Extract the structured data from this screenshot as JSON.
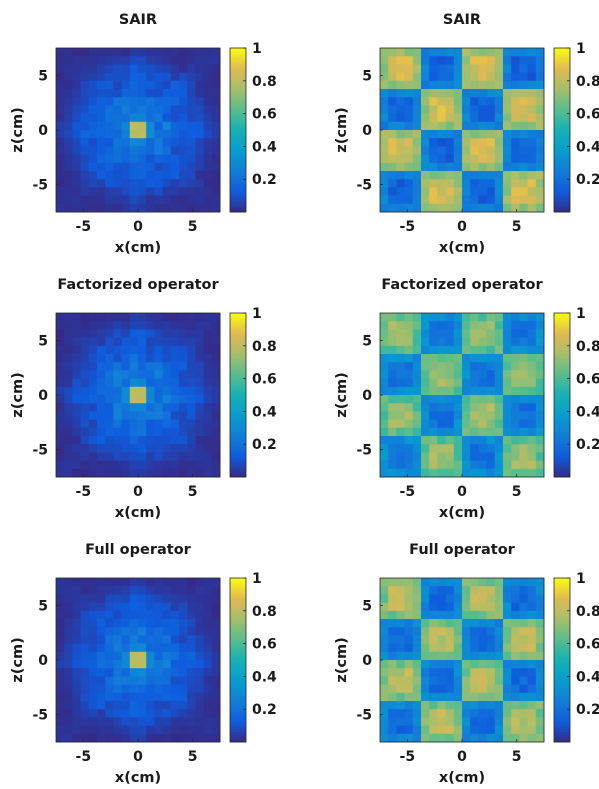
{
  "chart_data": [
    {
      "type": "heatmap",
      "title": "SAIR",
      "xlabel": "x(cm)",
      "ylabel": "z(cm)",
      "x_ticks": [
        -5,
        0,
        5
      ],
      "y_ticks": [
        5,
        0,
        -5
      ],
      "xlim": [
        -7.5,
        7.5
      ],
      "ylim": [
        -7.5,
        7.5
      ],
      "colorbar_ticks": [
        0.2,
        0.4,
        0.6,
        0.8,
        1
      ],
      "colorbar_range": [
        0,
        1
      ],
      "colormap": "parula",
      "pattern": "point-spread",
      "peak": {
        "x": 0,
        "z": 0,
        "value": 1
      }
    },
    {
      "type": "heatmap",
      "title": "SAIR",
      "xlabel": "x(cm)",
      "ylabel": "z(cm)",
      "x_ticks": [
        -5,
        0,
        5
      ],
      "y_ticks": [
        5,
        0,
        -5
      ],
      "xlim": [
        -7.5,
        7.5
      ],
      "ylim": [
        -7.5,
        7.5
      ],
      "colorbar_ticks": [
        0.2,
        0.4,
        0.6,
        0.8,
        1
      ],
      "colorbar_range": [
        0,
        1
      ],
      "colormap": "parula",
      "pattern": "checkerboard",
      "blocks": 4,
      "high_value": 0.9,
      "low_value": 0.1
    },
    {
      "type": "heatmap",
      "title": "Factorized operator",
      "xlabel": "x(cm)",
      "ylabel": "z(cm)",
      "x_ticks": [
        -5,
        0,
        5
      ],
      "y_ticks": [
        5,
        0,
        -5
      ],
      "xlim": [
        -7.5,
        7.5
      ],
      "ylim": [
        -7.5,
        7.5
      ],
      "colorbar_ticks": [
        0.2,
        0.4,
        0.6,
        0.8,
        1
      ],
      "colorbar_range": [
        0,
        1
      ],
      "colormap": "parula",
      "pattern": "point-spread",
      "peak": {
        "x": 0,
        "z": 0,
        "value": 1
      }
    },
    {
      "type": "heatmap",
      "title": "Factorized operator",
      "xlabel": "x(cm)",
      "ylabel": "z(cm)",
      "x_ticks": [
        -5,
        0,
        5
      ],
      "y_ticks": [
        5,
        0,
        -5
      ],
      "xlim": [
        -7.5,
        7.5
      ],
      "ylim": [
        -7.5,
        7.5
      ],
      "colorbar_ticks": [
        0.2,
        0.4,
        0.6,
        0.8,
        1
      ],
      "colorbar_range": [
        0,
        1
      ],
      "colormap": "parula",
      "pattern": "checkerboard",
      "blocks": 4,
      "high_value": 0.8,
      "low_value": 0.15
    },
    {
      "type": "heatmap",
      "title": "Full operator",
      "xlabel": "x(cm)",
      "ylabel": "z(cm)",
      "x_ticks": [
        -5,
        0,
        5
      ],
      "y_ticks": [
        5,
        0,
        -5
      ],
      "xlim": [
        -7.5,
        7.5
      ],
      "ylim": [
        -7.5,
        7.5
      ],
      "colorbar_ticks": [
        0.2,
        0.4,
        0.6,
        0.8,
        1
      ],
      "colorbar_range": [
        0,
        1
      ],
      "colormap": "parula",
      "pattern": "point-spread",
      "peak": {
        "x": 0,
        "z": 0,
        "value": 1
      }
    },
    {
      "type": "heatmap",
      "title": "Full operator",
      "xlabel": "x(cm)",
      "ylabel": "z(cm)",
      "x_ticks": [
        -5,
        0,
        5
      ],
      "y_ticks": [
        5,
        0,
        -5
      ],
      "xlim": [
        -7.5,
        7.5
      ],
      "ylim": [
        -7.5,
        7.5
      ],
      "colorbar_ticks": [
        0.2,
        0.4,
        0.6,
        0.8,
        1
      ],
      "colorbar_range": [
        0,
        1
      ],
      "colormap": "parula",
      "pattern": "checkerboard",
      "blocks": 4,
      "high_value": 0.85,
      "low_value": 0.12
    }
  ]
}
